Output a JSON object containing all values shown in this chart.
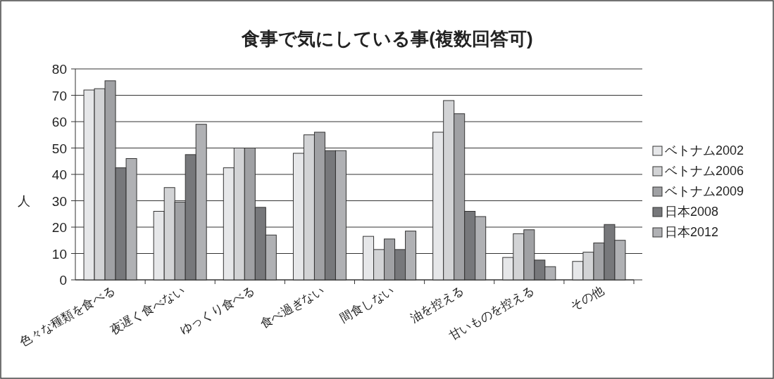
{
  "chart_data": {
    "type": "bar",
    "title": "食事で気にしている事(複数回答可)",
    "ylabel": "人",
    "categories": [
      "色々な種類を食べる",
      "夜遅く食べない",
      "ゆっくり食べる",
      "食べ過ぎない",
      "間食しない",
      "油を控える",
      "甘いものを控える",
      "その他"
    ],
    "series": [
      {
        "name": "ベトナム2002",
        "color": "#e6e7e9",
        "values": [
          72,
          26,
          42.5,
          48,
          16.5,
          56,
          8.5,
          7
        ]
      },
      {
        "name": "ベトナム2006",
        "color": "#d2d3d5",
        "values": [
          72.5,
          35,
          50,
          55,
          11.5,
          68,
          17.5,
          10.5
        ]
      },
      {
        "name": "ベトナム2009",
        "color": "#a0a1a4",
        "values": [
          75.5,
          29.5,
          50,
          56,
          15.5,
          63,
          19,
          14
        ]
      },
      {
        "name": "日本2008",
        "color": "#77787b",
        "values": [
          42.5,
          47.5,
          27.5,
          49,
          11.5,
          26,
          7.5,
          21
        ]
      },
      {
        "name": "日本2012",
        "color": "#b0b1b4",
        "values": [
          46,
          59,
          17,
          49,
          18.5,
          24,
          5,
          15
        ]
      }
    ],
    "ylim": [
      0,
      80
    ],
    "yticks": [
      0,
      10,
      20,
      30,
      40,
      50,
      60,
      70,
      80
    ],
    "grid": "y",
    "legend": "right"
  }
}
